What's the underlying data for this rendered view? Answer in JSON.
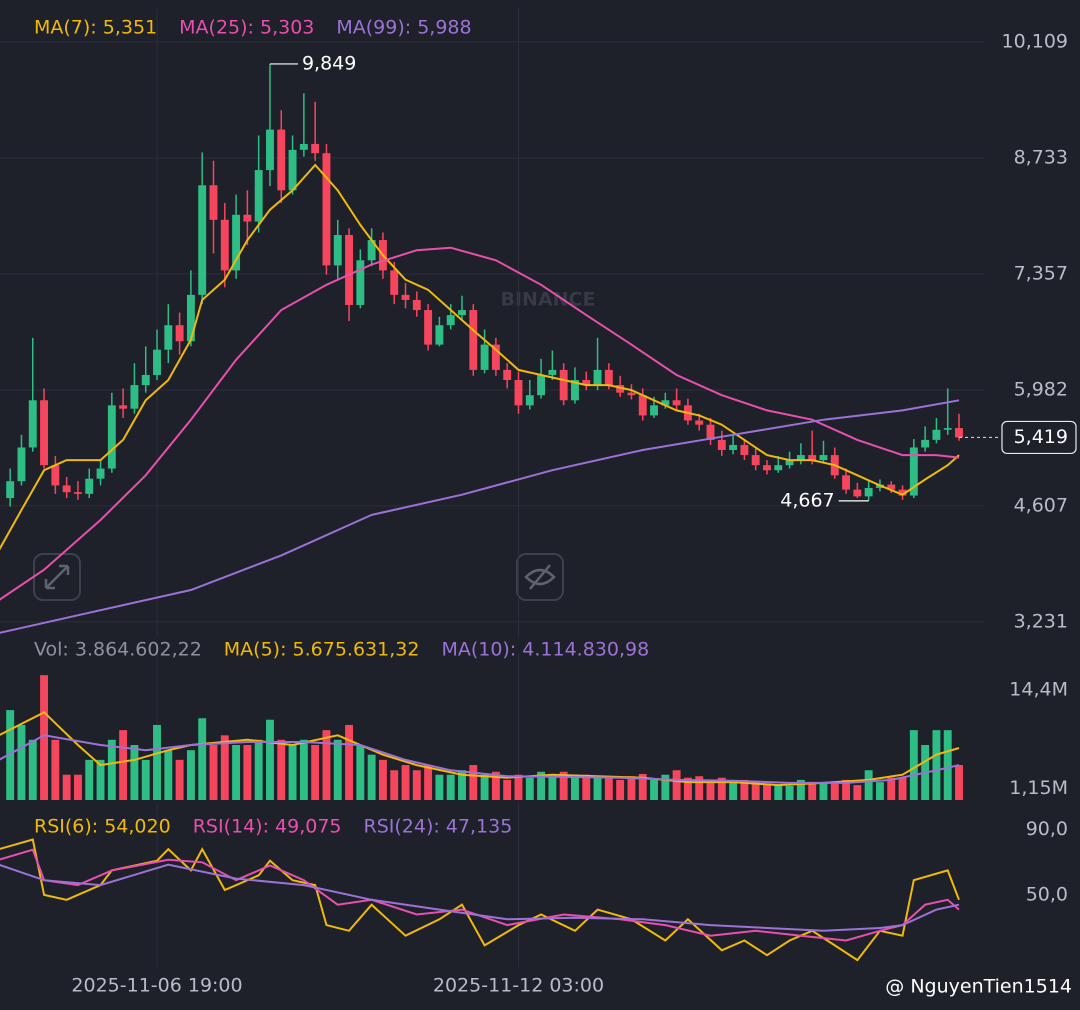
{
  "chart_data": [
    {
      "type": "candlestick",
      "up_color": "#2ebd85",
      "down_color": "#f6465d",
      "xlim": [
        -0.9,
        86.3
      ],
      "ylim": [
        3076,
        10370
      ],
      "yticks": [
        {
          "value": 10109,
          "label": "10,109"
        },
        {
          "value": 8733,
          "label": "8,733"
        },
        {
          "value": 7357,
          "label": "7,357"
        },
        {
          "value": 5982,
          "label": "5,982"
        },
        {
          "value": 4607,
          "label": "4,607"
        },
        {
          "value": 3231,
          "label": "3,231"
        }
      ],
      "grid": true,
      "open": [
        4700,
        4900,
        5300,
        5860,
        5090,
        4850,
        4770,
        4750,
        4930,
        5050,
        5800,
        5760,
        6040,
        6160,
        6460,
        6750,
        6560,
        7110,
        8410,
        8000,
        7400,
        8060,
        7980,
        8590,
        9070,
        8350,
        8830,
        8900,
        8790,
        7460,
        7820,
        6990,
        7520,
        7760,
        7400,
        7110,
        7050,
        6930,
        6520,
        6750,
        6870,
        6930,
        6220,
        6520,
        6220,
        6100,
        5800,
        5920,
        6160,
        6220,
        5860,
        6100,
        6040,
        6220,
        6040,
        5950,
        5920,
        5680,
        5800,
        5860,
        5800,
        5620,
        5570,
        5390,
        5270,
        5330,
        5210,
        5090,
        5030,
        5090,
        5150,
        5210,
        5150,
        5210,
        4970,
        4800,
        4720,
        4820,
        4860,
        4800,
        4730,
        5300,
        5390,
        5510,
        5530
      ],
      "high": [
        5050,
        5450,
        6600,
        6000,
        5200,
        4950,
        4900,
        5050,
        5150,
        5950,
        6000,
        6300,
        6500,
        6700,
        7000,
        6900,
        7400,
        8800,
        8700,
        8200,
        8300,
        8350,
        9000,
        9849,
        9300,
        9000,
        9500,
        9400,
        8900,
        8000,
        7900,
        7650,
        7900,
        7850,
        7500,
        7250,
        7150,
        7000,
        6850,
        7000,
        7100,
        7000,
        6700,
        6600,
        6300,
        6200,
        6100,
        6350,
        6450,
        6300,
        6250,
        6200,
        6600,
        6300,
        6150,
        6050,
        6000,
        5900,
        5950,
        6000,
        5880,
        5700,
        5650,
        5500,
        5450,
        5400,
        5300,
        5150,
        5200,
        5250,
        5350,
        5500,
        5380,
        5300,
        5050,
        4880,
        4900,
        4920,
        4900,
        4850,
        5400,
        5550,
        5650,
        6000,
        5700
      ],
      "low": [
        4600,
        4850,
        5250,
        5050,
        4750,
        4700,
        4680,
        4700,
        4850,
        5000,
        5650,
        5700,
        5950,
        6100,
        6300,
        6400,
        6500,
        7000,
        7600,
        7200,
        7300,
        7700,
        7850,
        8400,
        8200,
        8300,
        8750,
        8700,
        7350,
        7300,
        6800,
        6950,
        7450,
        7300,
        7000,
        6950,
        6850,
        6450,
        6500,
        6700,
        6800,
        6150,
        6180,
        6150,
        6000,
        5700,
        5750,
        5880,
        6100,
        5800,
        5820,
        5980,
        5980,
        5990,
        5900,
        5870,
        5620,
        5650,
        5760,
        5740,
        5570,
        5500,
        5330,
        5200,
        5220,
        5150,
        5030,
        4980,
        5000,
        5050,
        5100,
        5100,
        5120,
        4930,
        4750,
        4700,
        4667,
        4780,
        4760,
        4680,
        4700,
        5250,
        5350,
        5450,
        5380
      ],
      "close": [
        4900,
        5300,
        5860,
        5090,
        4850,
        4770,
        4750,
        4930,
        5050,
        5800,
        5760,
        6040,
        6160,
        6460,
        6750,
        6560,
        7110,
        8410,
        8000,
        7400,
        8060,
        7980,
        8590,
        9070,
        8350,
        8830,
        8900,
        8790,
        7460,
        7820,
        6990,
        7520,
        7760,
        7400,
        7110,
        7050,
        6930,
        6520,
        6750,
        6870,
        6930,
        6220,
        6520,
        6220,
        6100,
        5800,
        5920,
        6160,
        6220,
        5860,
        6100,
        6040,
        6220,
        6040,
        5950,
        5920,
        5680,
        5800,
        5860,
        5800,
        5620,
        5570,
        5390,
        5270,
        5330,
        5210,
        5090,
        5030,
        5090,
        5150,
        5210,
        5150,
        5210,
        4970,
        4800,
        4720,
        4820,
        4860,
        4800,
        4730,
        5300,
        5390,
        5510,
        5530,
        5419
      ],
      "overlays": [
        {
          "name": "MA(7): 5,351",
          "color": "#f0b90b",
          "x": [
            -1,
            1,
            3,
            5,
            8,
            10,
            12,
            14,
            16,
            17,
            19,
            21,
            23,
            25,
            27,
            29,
            31,
            33,
            35,
            37,
            39,
            41,
            43,
            45,
            47,
            49,
            51,
            53,
            55,
            57,
            59,
            61,
            63,
            65,
            67,
            69,
            71,
            73,
            75,
            77,
            79,
            81,
            83,
            84
          ],
          "values": [
            4080,
            4560,
            5030,
            5150,
            5150,
            5390,
            5860,
            6100,
            6580,
            7050,
            7290,
            7760,
            8120,
            8350,
            8650,
            8350,
            7940,
            7580,
            7290,
            7170,
            6930,
            6690,
            6460,
            6220,
            6160,
            6100,
            6040,
            6040,
            5980,
            5860,
            5740,
            5680,
            5570,
            5390,
            5210,
            5150,
            5150,
            5090,
            4970,
            4850,
            4740,
            4920,
            5090,
            5210
          ]
        },
        {
          "name": "MA(25): 5,303",
          "color": "#e84fae",
          "x": [
            -1,
            3,
            8,
            12,
            16,
            20,
            24,
            28,
            32,
            36,
            39,
            43,
            47,
            51,
            55,
            59,
            63,
            67,
            71,
            75,
            79,
            82,
            84
          ],
          "values": [
            3490,
            3850,
            4440,
            4970,
            5630,
            6340,
            6930,
            7230,
            7470,
            7640,
            7670,
            7520,
            7230,
            6870,
            6520,
            6160,
            5920,
            5740,
            5630,
            5390,
            5210,
            5210,
            5180
          ]
        },
        {
          "name": "MA(99): 5,988",
          "color": "#9c72d6",
          "x": [
            -1,
            8,
            16,
            24,
            32,
            40,
            48,
            56,
            64,
            72,
            79,
            84
          ],
          "values": [
            3100,
            3370,
            3610,
            4020,
            4500,
            4740,
            5030,
            5270,
            5450,
            5630,
            5740,
            5860
          ]
        }
      ],
      "annotations": [
        {
          "x": 23,
          "value": 9849,
          "label": "9,849"
        },
        {
          "x": 76,
          "value": 4667,
          "label": "4,667"
        }
      ],
      "last_price": {
        "value": 5419,
        "label": "5,419"
      }
    },
    {
      "type": "bar",
      "title": "Vol: 3.864.602,22",
      "xlim": [
        -0.9,
        86.3
      ],
      "ylim": [
        0,
        17770000
      ],
      "yticks": [
        {
          "value": 14400000,
          "label": "14,4M"
        },
        {
          "value": 1150000,
          "label": "1,15M"
        }
      ],
      "values": [
        11700000,
        9700000,
        7700000,
        16400000,
        7700000,
        3000000,
        3000000,
        5000000,
        5000000,
        7700000,
        9000000,
        7000000,
        5000000,
        9700000,
        6300000,
        5000000,
        6300000,
        10600000,
        7000000,
        8300000,
        7000000,
        7000000,
        7700000,
        10400000,
        7700000,
        7000000,
        7700000,
        7000000,
        9000000,
        7700000,
        9700000,
        7000000,
        5700000,
        5000000,
        3600000,
        4300000,
        3600000,
        4300000,
        3000000,
        3000000,
        3600000,
        4300000,
        3000000,
        3400000,
        2300000,
        3000000,
        2600000,
        3400000,
        3000000,
        3400000,
        3000000,
        3000000,
        2600000,
        2800000,
        2300000,
        2800000,
        3100000,
        2300000,
        3000000,
        3600000,
        2600000,
        2800000,
        2300000,
        2600000,
        2000000,
        2300000,
        2000000,
        1700000,
        1600000,
        1500000,
        2300000,
        2000000,
        1900000,
        2000000,
        2300000,
        1600000,
        3600000,
        2000000,
        2600000,
        2600000,
        9000000,
        7000000,
        9000000,
        9000000,
        4300000
      ],
      "overlays": [
        {
          "name": "MA(5): 5.675.631,32",
          "color": "#f0b90b",
          "x": [
            -1,
            3,
            6,
            8,
            11,
            14,
            16,
            21,
            25,
            29,
            33,
            36,
            40,
            44,
            48,
            52,
            56,
            60,
            64,
            68,
            72,
            76,
            79,
            82,
            84
          ],
          "values": [
            8300000,
            11400000,
            7000000,
            4300000,
            5000000,
            6300000,
            7000000,
            7700000,
            7000000,
            8300000,
            5700000,
            4300000,
            3000000,
            2600000,
            3000000,
            2800000,
            2600000,
            2000000,
            2000000,
            1600000,
            1900000,
            2300000,
            3000000,
            5700000,
            6600000
          ]
        },
        {
          "name": "MA(10): 4.114.830,98",
          "color": "#9c72d6",
          "x": [
            -1,
            3,
            8,
            12,
            16,
            21,
            26,
            31,
            35,
            39,
            44,
            49,
            54,
            59,
            64,
            69,
            74,
            78,
            82,
            84
          ],
          "values": [
            5000000,
            8300000,
            7000000,
            6300000,
            7000000,
            7400000,
            7400000,
            7000000,
            5000000,
            3600000,
            2800000,
            2700000,
            2600000,
            2300000,
            2200000,
            1900000,
            1900000,
            2300000,
            3600000,
            4300000
          ]
        }
      ]
    },
    {
      "type": "line",
      "xlim": [
        -0.9,
        86.3
      ],
      "ylim": [
        7,
        99
      ],
      "yticks": [
        {
          "value": 90,
          "label": "90,0"
        },
        {
          "value": 50,
          "label": "50,0"
        }
      ],
      "xticks": [
        {
          "value": 13,
          "label": "2025-11-06 19:00"
        },
        {
          "value": 45,
          "label": "2025-11-12 03:00"
        }
      ],
      "series": [
        {
          "name": "RSI(6): 54,020",
          "color": "#f0b90b",
          "x": [
            -1,
            2,
            3,
            5,
            8,
            9,
            13,
            14,
            16,
            17,
            19,
            22,
            23,
            25,
            27,
            28,
            30,
            32,
            35,
            38,
            40,
            42,
            45,
            47,
            50,
            52,
            55,
            58,
            60,
            63,
            65,
            67,
            69,
            71,
            73,
            75,
            77,
            79,
            80,
            83,
            84
          ],
          "values": [
            78,
            84,
            50,
            47,
            56,
            65,
            71,
            78,
            65,
            78,
            53,
            62,
            71,
            59,
            56,
            31.5,
            28,
            44,
            25,
            35,
            44,
            19,
            31.5,
            38,
            28,
            41,
            35,
            22,
            35,
            16,
            22,
            13,
            22,
            28,
            19,
            10,
            28,
            25,
            59,
            65,
            47
          ]
        },
        {
          "name": "RSI(14): 49,075",
          "color": "#e84fae",
          "x": [
            -1,
            2,
            3,
            6,
            9,
            14,
            17,
            20,
            23,
            26,
            29,
            32,
            36,
            40,
            44,
            49,
            54,
            58,
            62,
            66,
            70,
            74,
            77,
            79,
            81,
            83,
            84
          ],
          "values": [
            71.5,
            77.7,
            59,
            56,
            65,
            71.5,
            70,
            59,
            68,
            59,
            44,
            47,
            38,
            41,
            31.5,
            38,
            35,
            31.5,
            25,
            28,
            25,
            22,
            28,
            31.5,
            44,
            47,
            41
          ]
        },
        {
          "name": "RSI(24): 47,135",
          "color": "#9c72d6",
          "x": [
            -1,
            3,
            8,
            14,
            20,
            26,
            32,
            38,
            44,
            50,
            56,
            62,
            67,
            72,
            77,
            79,
            82,
            84
          ],
          "values": [
            68.5,
            59,
            56,
            68.5,
            60,
            56,
            47,
            41,
            35,
            36,
            35,
            31.5,
            29.7,
            28,
            29.7,
            31.5,
            41,
            44
          ]
        }
      ]
    }
  ],
  "watermark": "BINANCE",
  "credit": "@ NguyenTien1514"
}
